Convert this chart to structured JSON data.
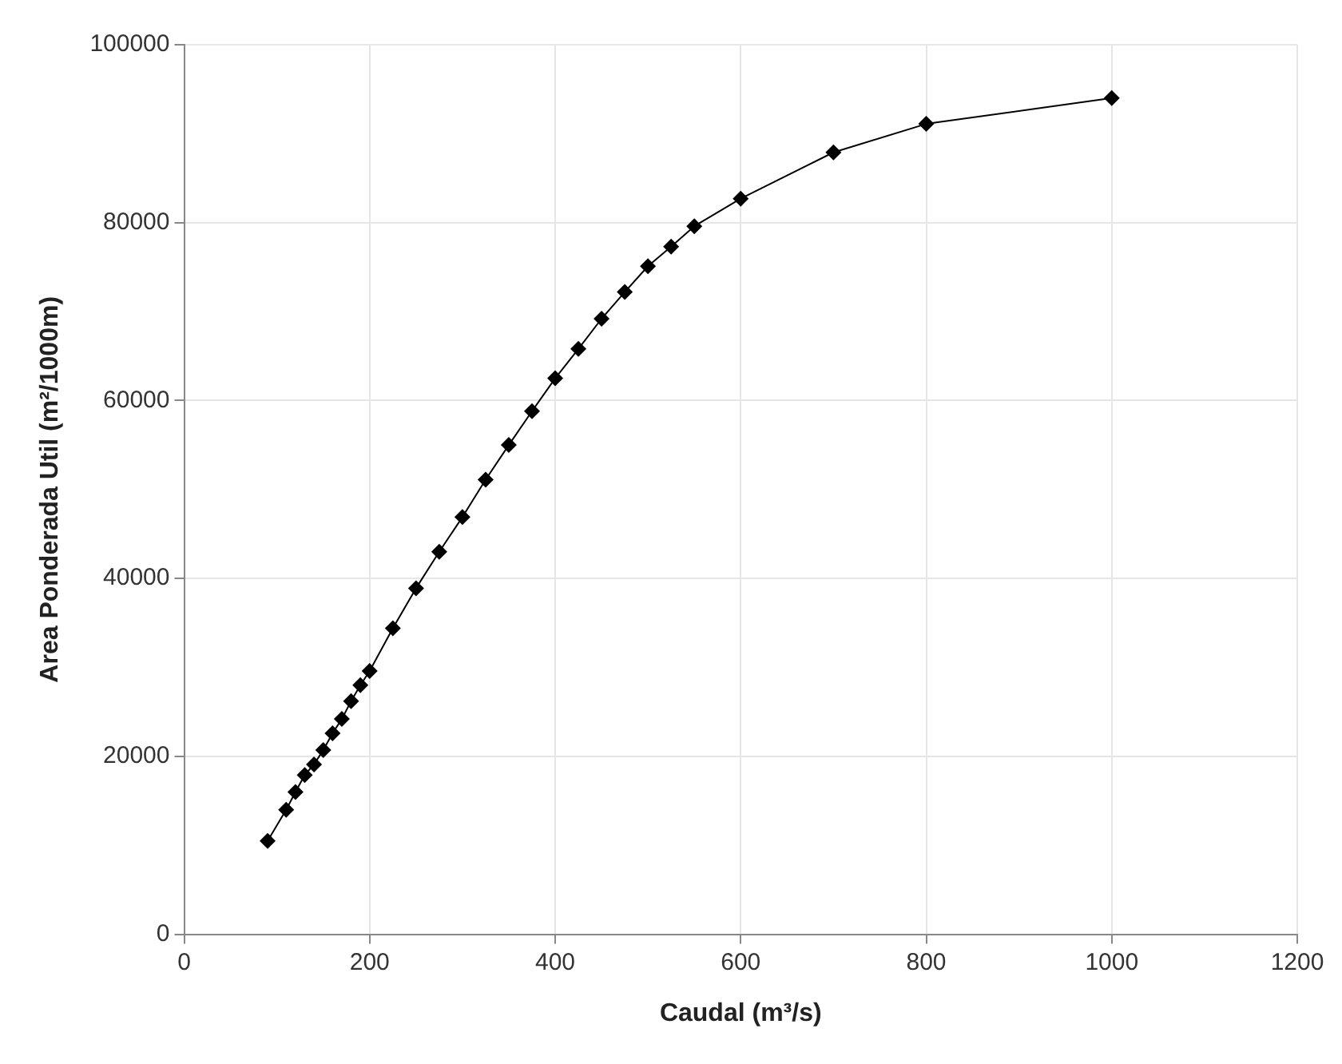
{
  "chart_data": {
    "type": "line",
    "xlabel": "Caudal (m³/s)",
    "ylabel": "Area Ponderada Util (m²/1000m)",
    "x": [
      90,
      110,
      120,
      130,
      140,
      150,
      160,
      170,
      180,
      190,
      200,
      225,
      250,
      275,
      300,
      325,
      350,
      375,
      400,
      425,
      450,
      475,
      500,
      525,
      550,
      600,
      700,
      800,
      1000
    ],
    "series": [
      {
        "color": "#000000",
        "values": [
          10500,
          14000,
          16000,
          17900,
          19100,
          20700,
          22600,
          24200,
          26200,
          28000,
          29600,
          34400,
          38900,
          43000,
          46900,
          51100,
          55000,
          58800,
          62500,
          65800,
          69200,
          72200,
          75100,
          77300,
          79600,
          82700,
          87900,
          91100,
          94000
        ]
      }
    ],
    "xlim": [
      0,
      1200
    ],
    "xticks": [
      0,
      200,
      400,
      600,
      800,
      1000,
      1200
    ],
    "ylim": [
      0,
      100000
    ],
    "yticks": [
      0,
      20000,
      40000,
      60000,
      80000,
      100000
    ],
    "grid": true,
    "legend": false,
    "marker": "diamond",
    "line_style": "solid"
  }
}
